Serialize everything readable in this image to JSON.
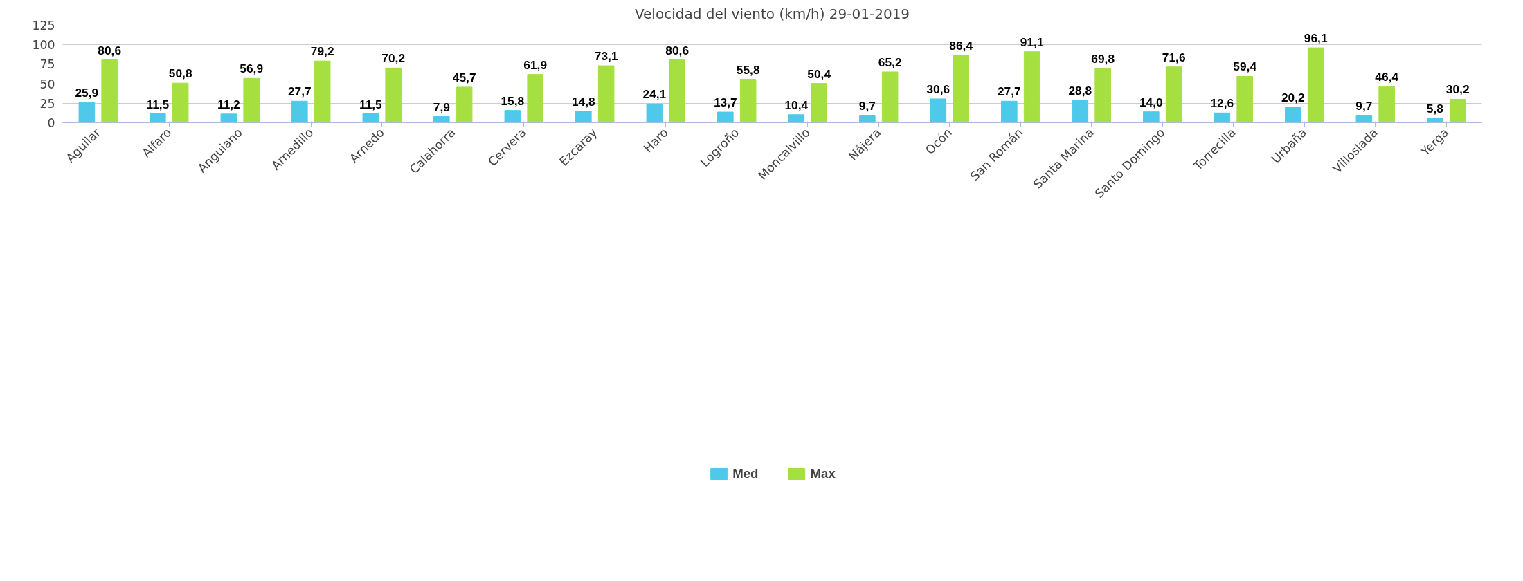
{
  "chart_data": {
    "type": "bar",
    "title": "Velocidad del viento (km/h) 29-01-2019",
    "categories": [
      "Aguilar",
      "Alfaro",
      "Anguiano",
      "Arnedillo",
      "Arnedo",
      "Calahorra",
      "Cervera",
      "Ezcaray",
      "Haro",
      "Logroño",
      "Moncalvillo",
      "Nájera",
      "Ocón",
      "San Román",
      "Santa Marina",
      "Santo Domingo",
      "Torrecilla",
      "Urbaña",
      "Villoslada",
      "Yerga"
    ],
    "series": [
      {
        "name": "Med",
        "color": "#4fc9ea",
        "values": [
          25.9,
          11.5,
          11.2,
          27.7,
          11.5,
          7.9,
          15.8,
          14.8,
          24.1,
          13.7,
          10.4,
          9.7,
          30.6,
          27.7,
          28.8,
          14.0,
          12.6,
          20.2,
          9.7,
          5.8
        ],
        "value_labels": [
          "25,9",
          "11,5",
          "11,2",
          "27,7",
          "11,5",
          "7,9",
          "15,8",
          "14,8",
          "24,1",
          "13,7",
          "10,4",
          "9,7",
          "30,6",
          "27,7",
          "28,8",
          "14,0",
          "12,6",
          "20,2",
          "9,7",
          "5,8"
        ]
      },
      {
        "name": "Max",
        "color": "#a5e040",
        "values": [
          80.6,
          50.8,
          56.9,
          79.2,
          70.2,
          45.7,
          61.9,
          73.1,
          80.6,
          55.8,
          50.4,
          65.2,
          86.4,
          91.1,
          69.8,
          71.6,
          59.4,
          96.1,
          46.4,
          30.2
        ],
        "value_labels": [
          "80,6",
          "50,8",
          "56,9",
          "79,2",
          "70,2",
          "45,7",
          "61,9",
          "73,1",
          "80,6",
          "55,8",
          "50,4",
          "65,2",
          "86,4",
          "91,1",
          "69,8",
          "71,6",
          "59,4",
          "96,1",
          "46,4",
          "30,2"
        ]
      }
    ],
    "ylim": [
      0,
      125
    ],
    "yticks": [
      0,
      25,
      50,
      75,
      100,
      125
    ],
    "grid": "y",
    "legend": "bottom"
  }
}
